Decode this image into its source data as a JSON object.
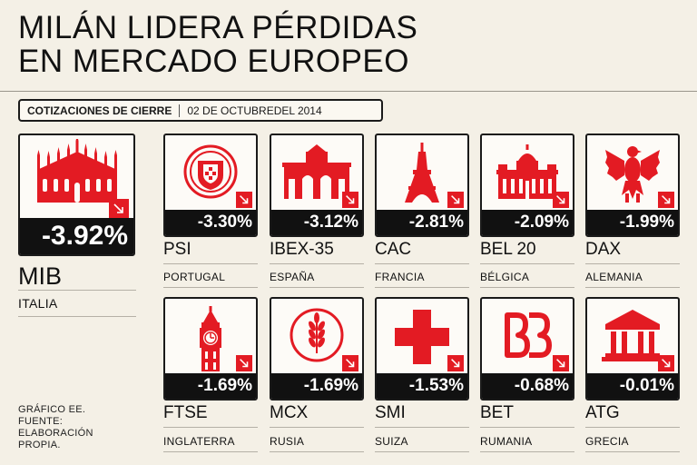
{
  "title": {
    "line1": "MILÁN LIDERA PÉRDIDAS",
    "line2": "EN MERCADO EUROPEO"
  },
  "banner": {
    "label": "COTIZACIONES DE CIERRE",
    "date": "02 DE OCTUBREDEL 2014"
  },
  "colors": {
    "accent": "#e31b23",
    "dark": "#111111",
    "background": "#f4f0e6"
  },
  "leader": {
    "change": "-3.92%",
    "index": "MIB",
    "country": "ITALIA",
    "icon": "milan-cathedral-icon"
  },
  "markets": [
    {
      "change": "-3.30%",
      "index": "PSI",
      "country": "PORTUGAL",
      "icon": "portugal-shield-icon"
    },
    {
      "change": "-3.12%",
      "index": "IBEX-35",
      "country": "ESPAÑA",
      "icon": "puerta-de-alcala-icon"
    },
    {
      "change": "-2.81%",
      "index": "CAC",
      "country": "FRANCIA",
      "icon": "eiffel-tower-icon"
    },
    {
      "change": "-2.09%",
      "index": "BEL 20",
      "country": "BÉLGICA",
      "icon": "brussels-palace-icon"
    },
    {
      "change": "-1.99%",
      "index": "DAX",
      "country": "ALEMANIA",
      "icon": "german-eagle-icon"
    },
    {
      "change": "-1.69%",
      "index": "FTSE",
      "country": "INGLATERRA",
      "icon": "big-ben-icon"
    },
    {
      "change": "-1.69%",
      "index": "MCX",
      "country": "RUSIA",
      "icon": "wheat-emblem-icon"
    },
    {
      "change": "-1.53%",
      "index": "SMI",
      "country": "SUIZA",
      "icon": "swiss-cross-icon"
    },
    {
      "change": "-0.68%",
      "index": "BET",
      "country": "RUMANIA",
      "icon": "bvb-logo-icon"
    },
    {
      "change": "-0.01%",
      "index": "ATG",
      "country": "GRECIA",
      "icon": "greek-temple-icon"
    }
  ],
  "footnote": "GRÁFICO EE. FUENTE: ELABORACIÓN PROPIA."
}
